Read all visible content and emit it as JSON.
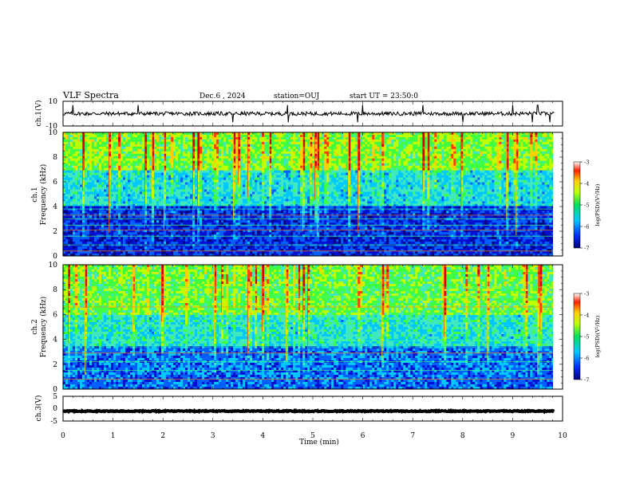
{
  "header": {
    "title": "VLF Spectra",
    "date": "Dec.6 , 2024",
    "station": "station=OUJ",
    "start": "start UT = 23:50:0"
  },
  "chart_data": [
    {
      "type": "line",
      "panel": "ch1-waveform",
      "ylabel": "ch.1(V)",
      "ylim": [
        -10,
        10
      ],
      "yticks": [
        "10",
        "-10"
      ],
      "xlim": [
        0,
        10
      ],
      "baseline": 0,
      "noise_amplitude": 1.5,
      "spikes_min": [
        0.2,
        1.5,
        3.4,
        4.5,
        5.9,
        6.0,
        7.2,
        8.0,
        9.0,
        9.4,
        9.5,
        9.75
      ]
    },
    {
      "type": "heatmap",
      "panel": "ch1-spectrogram",
      "ylabel_line1": "ch.1",
      "ylabel_line2": "Frequency (kHz)",
      "ylim": [
        0,
        10
      ],
      "yticks": [
        "0",
        "2",
        "4",
        "6",
        "8",
        "10"
      ],
      "xlim": [
        0,
        9.83
      ],
      "colorbar": {
        "label": "log(PSD)(V²/Hz)",
        "range": [
          -7,
          -3
        ],
        "ticks": [
          "-3",
          "-4",
          "-5",
          "-6",
          "-7"
        ]
      },
      "bands": [
        {
          "f_min": 0,
          "f_max": 4,
          "level": -6.3
        },
        {
          "f_min": 4,
          "f_max": 7,
          "level": -5.5
        },
        {
          "f_min": 7,
          "f_max": 10,
          "level": -4.8
        }
      ],
      "harmonic_lines_khz": [
        0.4,
        0.9,
        1.6,
        2.1,
        2.5,
        3.0,
        3.3,
        3.8,
        4.2
      ]
    },
    {
      "type": "heatmap",
      "panel": "ch2-spectrogram",
      "ylabel_line1": "ch.2",
      "ylabel_line2": "Frequency (kHz)",
      "ylim": [
        0,
        10
      ],
      "yticks": [
        "0",
        "2",
        "4",
        "6",
        "8",
        "10"
      ],
      "xlim": [
        0,
        9.83
      ],
      "colorbar": {
        "label": "log(PSD)(V²/Hz)",
        "range": [
          -7,
          -3
        ],
        "ticks": [
          "-3",
          "-4",
          "-5",
          "-6",
          "-7"
        ]
      },
      "bands": [
        {
          "f_min": 0,
          "f_max": 3.5,
          "level": -6.0
        },
        {
          "f_min": 3.5,
          "f_max": 6,
          "level": -5.4
        },
        {
          "f_min": 6,
          "f_max": 10,
          "level": -4.9
        }
      ],
      "harmonic_lines_khz": [
        0.8,
        1.5,
        2.2,
        2.9,
        3.4,
        3.9,
        6.6,
        7.4,
        8.2
      ]
    },
    {
      "type": "line",
      "panel": "ch3-waveform",
      "ylabel": "ch.3(V)",
      "ylim": [
        -5,
        5
      ],
      "yticks": [
        "5",
        "0",
        "-5"
      ],
      "xlim": [
        0,
        10
      ],
      "baseline": -1.0,
      "noise_amplitude": 0.2,
      "xlabel": "Time (min)",
      "xticks": [
        "0",
        "1",
        "2",
        "3",
        "4",
        "5",
        "6",
        "7",
        "8",
        "9",
        "10"
      ]
    }
  ],
  "colors": {
    "colormap": [
      "#00007a",
      "#0010d0",
      "#0060ff",
      "#00c8ff",
      "#40e8c0",
      "#40ff40",
      "#c0ff00",
      "#ffd000",
      "#ff4000",
      "#d00000"
    ],
    "axis": "#000000",
    "trace": "#000000"
  }
}
